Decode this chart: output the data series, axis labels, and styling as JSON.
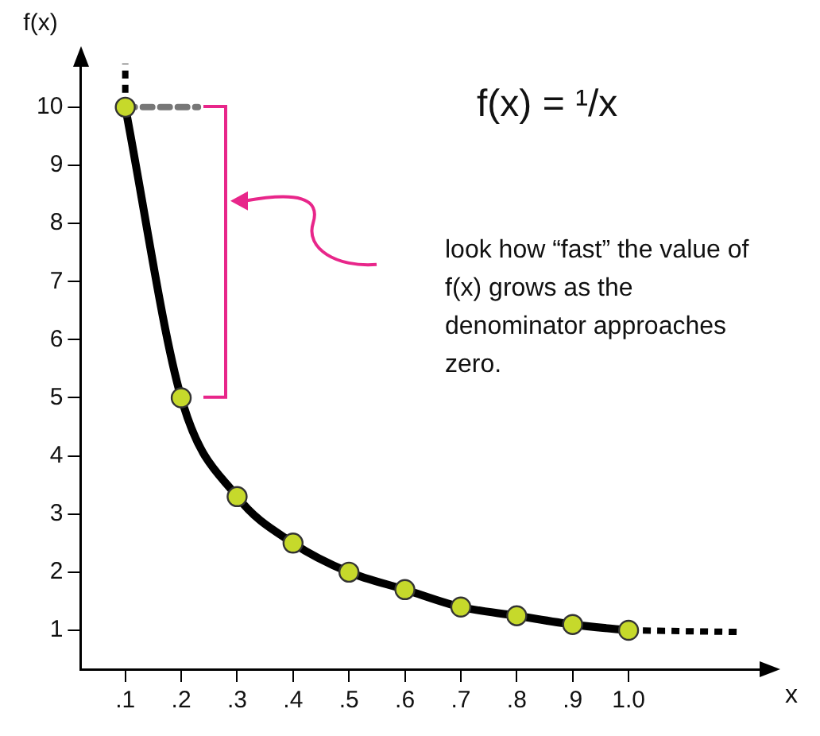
{
  "chart_data": {
    "type": "line",
    "title": "f(x) = ¹/x",
    "xlabel": "x",
    "ylabel": "f(x)",
    "annotations": [
      "look how “fast” the value of f(x) grows as the denominator approaches zero."
    ],
    "x": [
      0.1,
      0.2,
      0.3,
      0.4,
      0.5,
      0.6,
      0.7,
      0.8,
      0.9,
      1.0
    ],
    "series": [
      {
        "color": "#000000",
        "colors": [
          "#c6d92b",
          "#c6d92b",
          "#c6d92b",
          "#c6d92b",
          "#c6d92b",
          "#c6d92b",
          "#c6d92b",
          "#c6d92b",
          "#c6d92b",
          "#c6d92b"
        ],
        "values": [
          10,
          5,
          3.3,
          2.5,
          2,
          1.7,
          1.4,
          1.25,
          1.1,
          1
        ],
        "marker": "circle",
        "line_style": "solid"
      },
      {
        "color": "#000000",
        "x": [
          0.1,
          0.1
        ],
        "values": [
          10,
          10.75
        ],
        "marker": "none",
        "line_style": "dotted"
      },
      {
        "color": "#000000",
        "x": [
          1.0,
          1.2
        ],
        "values": [
          1,
          0.97
        ],
        "marker": "none",
        "line_style": "dotted"
      },
      {
        "color": "#777777",
        "x": [
          0.1,
          0.23
        ],
        "values": [
          10,
          10
        ],
        "marker": "none",
        "line_style": "dashed"
      }
    ],
    "xlim": [
      0.02,
      1.24
    ],
    "ylim": [
      0.33,
      10.75
    ],
    "xticks": [
      {
        "value": 0.1,
        "label": ".1"
      },
      {
        "value": 0.2,
        "label": ".2"
      },
      {
        "value": 0.3,
        "label": ".3"
      },
      {
        "value": 0.4,
        "label": ".4"
      },
      {
        "value": 0.5,
        "label": ".5"
      },
      {
        "value": 0.6,
        "label": ".6"
      },
      {
        "value": 0.7,
        "label": ".7"
      },
      {
        "value": 0.8,
        "label": ".8"
      },
      {
        "value": 0.9,
        "label": ".9"
      },
      {
        "value": 1.0,
        "label": "1.0"
      }
    ],
    "yticks": [
      1,
      2,
      3,
      4,
      5,
      6,
      7,
      8,
      9,
      10
    ],
    "grid": false,
    "legend": false
  }
}
